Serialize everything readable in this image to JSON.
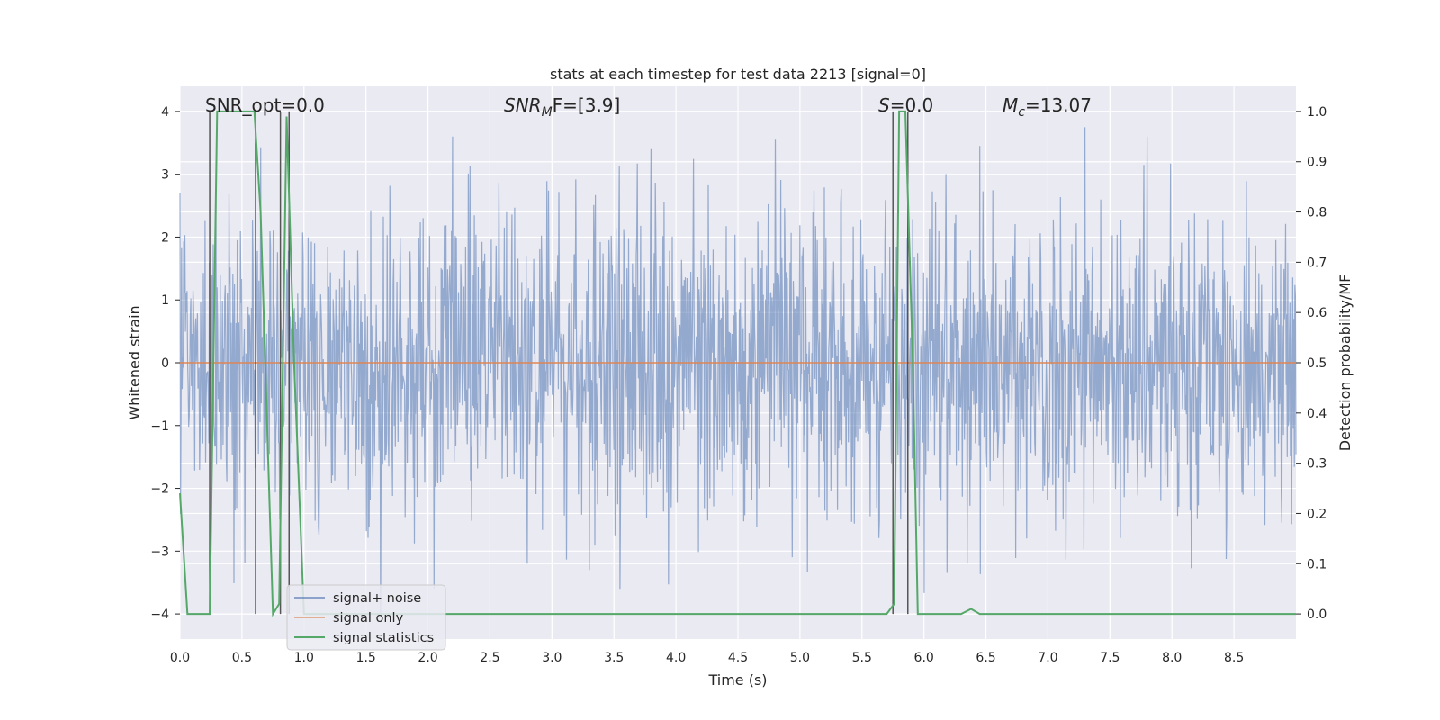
{
  "chart_data": {
    "type": "line",
    "title": "stats at each timestep for test data 2213 [signal=0]",
    "xlabel": "Time (s)",
    "ylabel": "Whitened strain",
    "ylabel_right": "Detection probability/MF",
    "xlim": [
      0.0,
      9.0
    ],
    "ylim": [
      -4.4,
      4.4
    ],
    "ylim_right": [
      -0.05,
      1.05
    ],
    "x_ticks": [
      0.0,
      0.5,
      1.0,
      1.5,
      2.0,
      2.5,
      3.0,
      3.5,
      4.0,
      4.5,
      5.0,
      5.5,
      6.0,
      6.5,
      7.0,
      7.5,
      8.0,
      8.5
    ],
    "x_tick_labels": [
      "0.0",
      "0.5",
      "1.0",
      "1.5",
      "2.0",
      "2.5",
      "3.0",
      "3.5",
      "4.0",
      "4.5",
      "5.0",
      "5.5",
      "6.0",
      "6.5",
      "7.0",
      "7.5",
      "8.0",
      "8.5"
    ],
    "y_ticks": [
      4,
      3,
      2,
      1,
      0,
      -1,
      -2,
      -3,
      -4
    ],
    "y_tick_labels": [
      "4",
      "3",
      "2",
      "1",
      "0",
      "−1",
      "−2",
      "−3",
      "−4"
    ],
    "y_right_ticks": [
      1.0,
      0.9,
      0.8,
      0.7,
      0.6,
      0.5,
      0.4,
      0.3,
      0.2,
      0.1,
      0.0
    ],
    "y_right_tick_labels": [
      "1.0",
      "0.9",
      "0.8",
      "0.7",
      "0.6",
      "0.5",
      "0.4",
      "0.3",
      "0.2",
      "0.1",
      "0.0"
    ],
    "annotations": {
      "snr_opt": "SNR_opt=0.0",
      "snr_mf_base": "SNR",
      "snr_mf_sub": "M",
      "snr_mf_tail": "F=[3.9]",
      "s_base": "S",
      "s_tail": "=0.0",
      "mc_base": "M",
      "mc_sub": "c",
      "mc_tail": "=13.07"
    },
    "legend": {
      "placement": "lower-left",
      "entries": [
        "signal+ noise",
        "signal only",
        "signal statistics"
      ]
    },
    "series": [
      {
        "name": "signal+ noise",
        "axis": "left",
        "color": "#4c72b0",
        "description": "whitened noise, approx |amplitude| up to ~4, sampled densely over 0-9 s",
        "typical_peak": 2.0,
        "max_abs": 4.0,
        "samples": 2048,
        "seed": 2213,
        "notable_peaks": [
          {
            "x": 2.2,
            "y": 3.6
          },
          {
            "x": 3.8,
            "y": 3.4
          },
          {
            "x": 4.8,
            "y": 3.55
          },
          {
            "x": 6.45,
            "y": 3.45
          },
          {
            "x": 7.3,
            "y": 3.75
          },
          {
            "x": 7.8,
            "y": 3.6
          },
          {
            "x": 3.3,
            "y": -3.3
          },
          {
            "x": 3.55,
            "y": -3.6
          },
          {
            "x": 2.05,
            "y": -3.6
          },
          {
            "x": 6.35,
            "y": -3.2
          },
          {
            "x": 2.8,
            "y": -3.2
          }
        ]
      },
      {
        "name": "signal only",
        "axis": "left",
        "color": "#dd8452",
        "x": [
          0.0,
          9.0
        ],
        "y": [
          0.0,
          0.0
        ]
      },
      {
        "name": "signal statistics",
        "axis": "right",
        "color": "#55a868",
        "x": [
          0.0,
          0.06,
          0.1,
          0.24,
          0.3,
          0.6,
          0.65,
          0.75,
          0.8,
          0.86,
          0.92,
          1.0,
          1.5,
          5.7,
          5.76,
          5.8,
          5.85,
          5.91,
          5.95,
          6.3,
          6.38,
          6.45,
          6.5,
          8.5,
          9.0
        ],
        "y": [
          0.24,
          0.0,
          0.0,
          0.0,
          1.0,
          1.0,
          0.8,
          0.0,
          0.02,
          0.99,
          0.5,
          0.0,
          0.0,
          0.0,
          0.02,
          1.0,
          1.0,
          0.5,
          0.0,
          0.0,
          0.01,
          0.0,
          0.0,
          0.0,
          0.0
        ]
      }
    ],
    "vertical_markers": {
      "color": "#555555",
      "x": [
        0.24,
        0.61,
        0.81,
        0.88,
        5.75,
        5.87
      ],
      "y_top": 4.0,
      "y_bottom": -4.0
    }
  }
}
